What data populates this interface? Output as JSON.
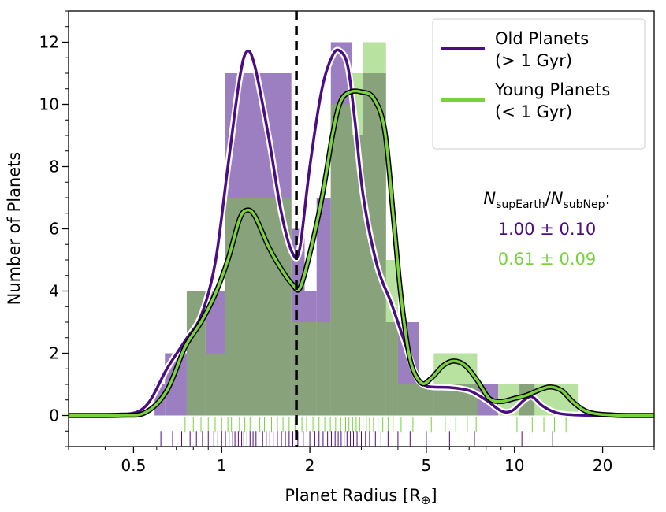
{
  "chart_data": {
    "type": "bar",
    "xlabel_main": "Planet Radius [R",
    "xlabel_symbol": "⊕",
    "xlabel_close": "]",
    "ylabel": "Number of Planets",
    "x_scale": "log",
    "xlim": [
      0.3,
      30
    ],
    "ylim": [
      -1,
      13
    ],
    "x_ticks": [
      {
        "value": 0.5,
        "label": "0.5"
      },
      {
        "value": 1,
        "label": "1"
      },
      {
        "value": 2,
        "label": "2"
      },
      {
        "value": 5,
        "label": "5"
      },
      {
        "value": 10,
        "label": "10"
      },
      {
        "value": 20,
        "label": "20"
      }
    ],
    "y_ticks": [
      {
        "value": 0,
        "label": "0"
      },
      {
        "value": 2,
        "label": "2"
      },
      {
        "value": 4,
        "label": "4"
      },
      {
        "value": 6,
        "label": "6"
      },
      {
        "value": 8,
        "label": "8"
      },
      {
        "value": 10,
        "label": "10"
      },
      {
        "value": 12,
        "label": "12"
      }
    ],
    "divider_radius": 1.8,
    "legend_position": "top-right",
    "colors": {
      "old": "#4b0c84",
      "old_hist": "#9b7fc0",
      "young": "#78d23c",
      "young_hist": "#b8e2a0",
      "overlap": "#88a27c"
    },
    "bin_edges": [
      0.59,
      0.64,
      0.76,
      0.88,
      1.03,
      1.56,
      1.73,
      1.92,
      2.11,
      2.36,
      2.78,
      3.04,
      3.64,
      4.0,
      4.71,
      5.3,
      7.46,
      8.8,
      10.4,
      11.71,
      16.46
    ],
    "series": [
      {
        "name_line1": "Old Planets",
        "name_line2": "(> 1 Gyr)",
        "counts": [
          1,
          2,
          4,
          4,
          11,
          11,
          6,
          4,
          7,
          12,
          9,
          11,
          3,
          3,
          1,
          1,
          1,
          0,
          1,
          0
        ],
        "kde": [
          [
            0.3,
            0
          ],
          [
            0.45,
            0.02
          ],
          [
            0.55,
            0.3
          ],
          [
            0.65,
            1.5
          ],
          [
            0.75,
            2.4
          ],
          [
            0.85,
            3.2
          ],
          [
            0.95,
            4.9
          ],
          [
            1.05,
            8.0
          ],
          [
            1.15,
            10.8
          ],
          [
            1.22,
            11.7
          ],
          [
            1.3,
            11.2
          ],
          [
            1.45,
            8.9
          ],
          [
            1.6,
            6.5
          ],
          [
            1.75,
            5.2
          ],
          [
            1.85,
            5.4
          ],
          [
            2.0,
            8.0
          ],
          [
            2.2,
            10.5
          ],
          [
            2.4,
            11.6
          ],
          [
            2.55,
            11.7
          ],
          [
            2.7,
            11.2
          ],
          [
            2.85,
            9.5
          ],
          [
            3.05,
            7.0
          ],
          [
            3.4,
            4.8
          ],
          [
            3.8,
            3.6
          ],
          [
            4.2,
            2.4
          ],
          [
            4.6,
            1.3
          ],
          [
            5.0,
            0.95
          ],
          [
            6.0,
            0.9
          ],
          [
            7.0,
            0.8
          ],
          [
            8.0,
            0.5
          ],
          [
            9.0,
            0.15
          ],
          [
            9.8,
            0.15
          ],
          [
            10.8,
            0.5
          ],
          [
            11.5,
            0.6
          ],
          [
            12.5,
            0.3
          ],
          [
            14.0,
            0.08
          ],
          [
            16.0,
            0.02
          ],
          [
            20.0,
            0
          ],
          [
            30.0,
            0
          ]
        ],
        "rug_radii": [
          0.62,
          0.68,
          0.73,
          0.78,
          0.82,
          0.86,
          0.9,
          0.94,
          0.97,
          1.0,
          1.03,
          1.06,
          1.09,
          1.11,
          1.14,
          1.17,
          1.19,
          1.22,
          1.25,
          1.28,
          1.31,
          1.34,
          1.38,
          1.42,
          1.46,
          1.5,
          1.55,
          1.6,
          1.65,
          1.7,
          1.75,
          1.82,
          1.9,
          2.0,
          2.08,
          2.15,
          2.22,
          2.3,
          2.37,
          2.44,
          2.5,
          2.56,
          2.62,
          2.68,
          2.75,
          2.82,
          2.9,
          3.0,
          3.1,
          3.2,
          3.35,
          3.5,
          3.7,
          4.0,
          4.4,
          5.0,
          6.0,
          7.3,
          10.6,
          11.3,
          13.5
        ]
      },
      {
        "name_line1": "Young Planets",
        "name_line2": "(< 1 Gyr)",
        "counts": [
          0,
          0,
          4,
          2,
          7,
          7,
          3,
          3,
          3,
          10,
          11,
          12,
          5,
          1,
          1,
          2,
          0,
          1,
          1,
          1
        ],
        "kde": [
          [
            0.3,
            0
          ],
          [
            0.45,
            0.01
          ],
          [
            0.55,
            0.1
          ],
          [
            0.65,
            0.8
          ],
          [
            0.75,
            2.2
          ],
          [
            0.85,
            3.0
          ],
          [
            0.95,
            3.9
          ],
          [
            1.05,
            5.0
          ],
          [
            1.15,
            6.3
          ],
          [
            1.22,
            6.6
          ],
          [
            1.3,
            6.4
          ],
          [
            1.45,
            5.4
          ],
          [
            1.6,
            4.7
          ],
          [
            1.75,
            4.2
          ],
          [
            1.85,
            4.1
          ],
          [
            2.0,
            5.2
          ],
          [
            2.2,
            7.0
          ],
          [
            2.4,
            9.1
          ],
          [
            2.55,
            10.1
          ],
          [
            2.75,
            10.4
          ],
          [
            3.0,
            10.4
          ],
          [
            3.3,
            10.2
          ],
          [
            3.6,
            9.2
          ],
          [
            3.85,
            6.5
          ],
          [
            4.1,
            3.8
          ],
          [
            4.4,
            1.8
          ],
          [
            4.8,
            1.05
          ],
          [
            5.2,
            1.2
          ],
          [
            5.7,
            1.6
          ],
          [
            6.2,
            1.75
          ],
          [
            6.8,
            1.6
          ],
          [
            7.5,
            1.1
          ],
          [
            8.2,
            0.55
          ],
          [
            9.0,
            0.45
          ],
          [
            10.0,
            0.55
          ],
          [
            11.0,
            0.65
          ],
          [
            12.0,
            0.8
          ],
          [
            13.2,
            0.92
          ],
          [
            14.5,
            0.8
          ],
          [
            16.0,
            0.4
          ],
          [
            18.0,
            0.1
          ],
          [
            22.0,
            0.01
          ],
          [
            30.0,
            0
          ]
        ],
        "rug_radii": [
          0.75,
          0.8,
          0.85,
          0.9,
          0.95,
          1.0,
          1.05,
          1.08,
          1.12,
          1.15,
          1.2,
          1.25,
          1.3,
          1.35,
          1.4,
          1.48,
          1.55,
          1.62,
          1.7,
          1.78,
          1.88,
          1.95,
          2.05,
          2.15,
          2.25,
          2.35,
          2.45,
          2.55,
          2.65,
          2.72,
          2.8,
          2.88,
          2.96,
          3.04,
          3.12,
          3.2,
          3.3,
          3.42,
          3.55,
          3.7,
          3.85,
          4.1,
          4.5,
          5.2,
          5.8,
          6.3,
          6.9,
          7.4,
          9.5,
          10.2,
          11.5,
          12.6,
          13.7,
          15.0
        ]
      }
    ],
    "ratio_label": {
      "var1": "N",
      "sub1": "supEarth",
      "slash": "/",
      "var2": "N",
      "sub2": "subNep",
      "suffix": ":"
    },
    "ratios": [
      {
        "text": "1.00 ± 0.10"
      },
      {
        "text": "0.61 ± 0.09"
      }
    ]
  }
}
